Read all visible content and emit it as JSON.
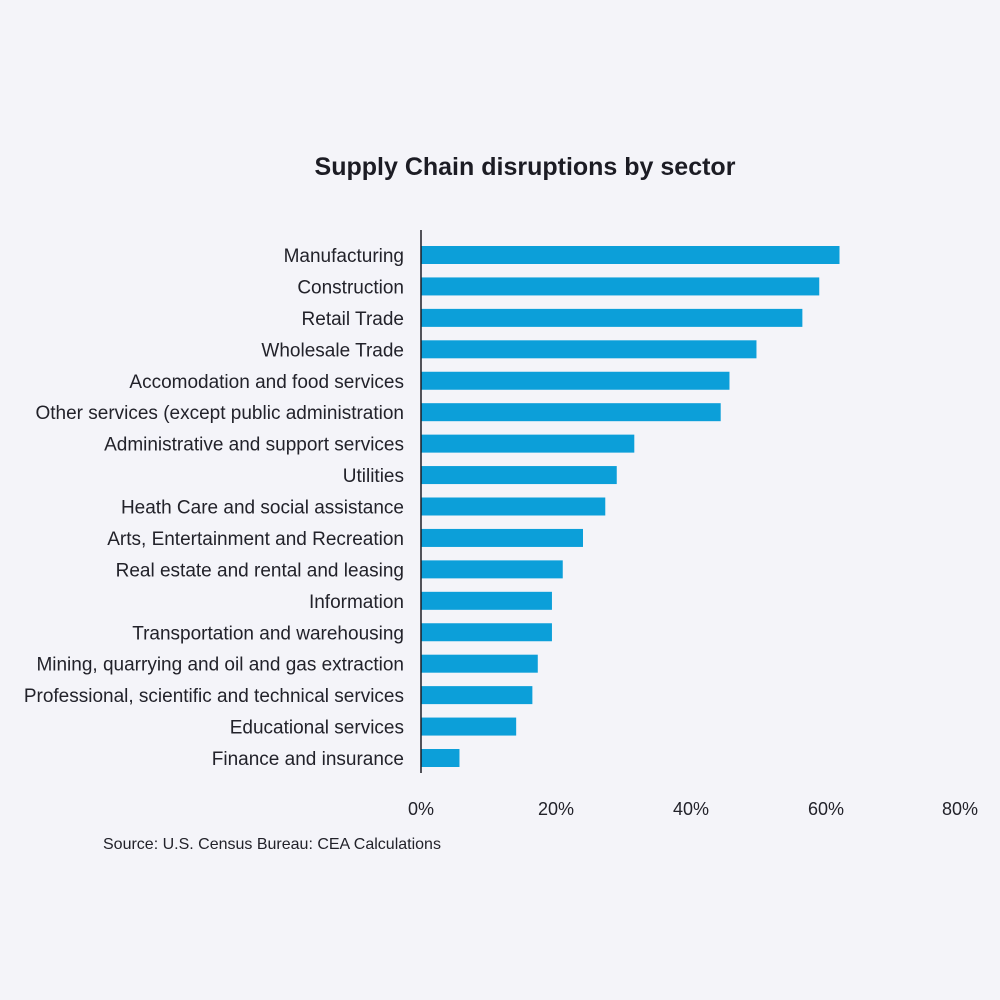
{
  "chart_data": {
    "type": "bar",
    "orientation": "horizontal",
    "title": "Supply Chain disruptions by sector",
    "xlabel": "",
    "ylabel": "",
    "categories": [
      "Manufacturing",
      "Construction",
      "Retail Trade",
      "Wholesale Trade",
      "Accomodation and food services",
      "Other services (except public administration",
      "Administrative and support services",
      "Utilities",
      "Heath Care and social assistance",
      "Arts, Entertainment and Recreation",
      "Real estate and rental and leasing",
      "Information",
      "Transportation and warehousing",
      "Mining, quarrying and oil and gas extraction",
      "Professional, scientific and technical services",
      "Educational services",
      "Finance and insurance"
    ],
    "values": [
      62,
      59,
      56.5,
      49.7,
      45.7,
      44.4,
      31.6,
      29,
      27.3,
      24,
      21,
      19.4,
      19.4,
      17.3,
      16.5,
      14.1,
      5.7
    ],
    "xlim": [
      0,
      80
    ],
    "ticks": [
      0,
      20,
      40,
      60,
      80
    ],
    "tick_labels": [
      "0%",
      "20%",
      "40%",
      "60%",
      "80%"
    ],
    "grid": false,
    "legend": "none",
    "bar_color": "#0c9fd9",
    "axis_color": "#1c1c24"
  },
  "source": "Source: U.S. Census Bureau: CEA Calculations"
}
